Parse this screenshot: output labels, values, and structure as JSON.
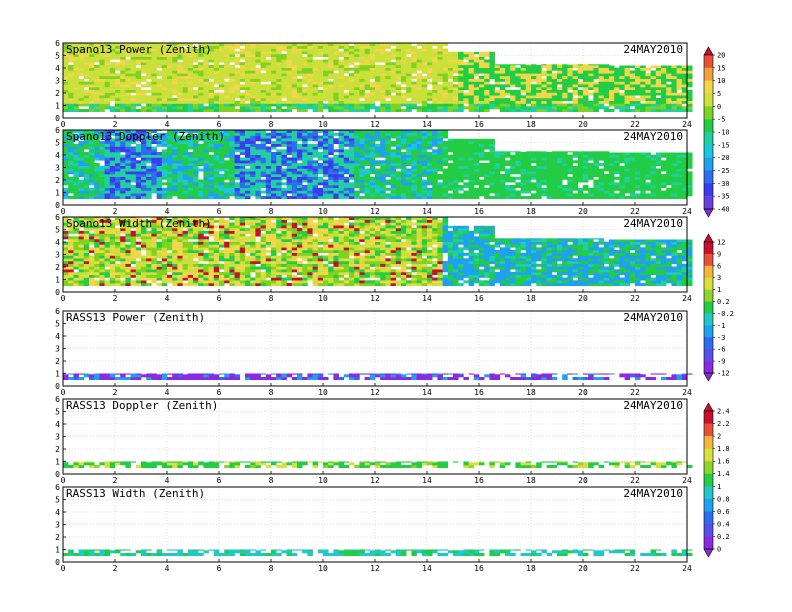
{
  "chart_data": [
    {
      "type": "heatmap",
      "title": "Spano13 Power (Zenith)",
      "date": "24MAY2010",
      "xlim": [
        0,
        24
      ],
      "x_ticks": [
        "0",
        "2",
        "4",
        "6",
        "8",
        "10",
        "12",
        "14",
        "16",
        "18",
        "20",
        "22",
        "24"
      ],
      "ylim": [
        0,
        6
      ],
      "y_ticks": [
        "0",
        "1",
        "2",
        "3",
        "4",
        "5",
        "6"
      ],
      "grid": true,
      "colorbar": {
        "labels": [
          "20",
          "15",
          "10",
          "5",
          "0",
          "-5",
          "-10",
          "-15",
          "-20",
          "-25",
          "-30",
          "-35",
          "-40"
        ],
        "min": -40,
        "max": 20,
        "extend": "both"
      },
      "series": [
        {
          "name": "Spano13 Power (Zenith)",
          "range_km": [
            0.5,
            6.0
          ],
          "values": [
            [
              0,
              14.6,
              6.0
            ],
            [
              14.6,
              16.4,
              5.3
            ],
            [
              16.4,
              20.8,
              4.3
            ],
            [
              20.8,
              24,
              4.2
            ]
          ]
        }
      ]
    },
    {
      "type": "heatmap",
      "title": "Spano13 Doppler (Zenith)",
      "date": "24MAY2010",
      "xlim": [
        0,
        24
      ],
      "x_ticks": [
        "0",
        "2",
        "4",
        "6",
        "8",
        "10",
        "12",
        "14",
        "16",
        "18",
        "20",
        "22",
        "24"
      ],
      "ylim": [
        0,
        6
      ],
      "y_ticks": [
        "0",
        "1",
        "2",
        "3",
        "4",
        "5",
        "6"
      ],
      "grid": true,
      "colorbar": null,
      "series": [
        {
          "name": "Spano13 Doppler (Zenith)",
          "range_km": [
            0.5,
            6.0
          ],
          "values": [
            [
              0,
              14.6,
              6.0
            ],
            [
              14.6,
              16.4,
              5.3
            ],
            [
              16.4,
              20.8,
              4.3
            ],
            [
              20.8,
              24,
              4.2
            ]
          ]
        }
      ]
    },
    {
      "type": "heatmap",
      "title": "Spano13 Width (Zenith)",
      "date": "24MAY2010",
      "xlim": [
        0,
        24
      ],
      "x_ticks": [
        "0",
        "2",
        "4",
        "6",
        "8",
        "10",
        "12",
        "14",
        "16",
        "18",
        "20",
        "22",
        "24"
      ],
      "ylim": [
        0,
        6
      ],
      "y_ticks": [
        "0",
        "1",
        "2",
        "3",
        "4",
        "5",
        "6"
      ],
      "grid": true,
      "colorbar": {
        "labels": [
          "12",
          "9",
          "6",
          "3",
          "1",
          "0.2",
          "-0.2",
          "-1",
          "-3",
          "-6",
          "-9",
          "-12"
        ],
        "min": -12,
        "max": 12,
        "extend": "both"
      },
      "series": [
        {
          "name": "Spano13 Width (Zenith)",
          "range_km": [
            0.5,
            6.0
          ],
          "values": [
            [
              0,
              14.6,
              6.0
            ],
            [
              14.6,
              16.4,
              5.3
            ],
            [
              16.4,
              20.8,
              4.3
            ],
            [
              20.8,
              24,
              4.2
            ]
          ]
        }
      ]
    },
    {
      "type": "heatmap",
      "title": "RASS13 Power (Zenith)",
      "date": "24MAY2010",
      "xlim": [
        0,
        24
      ],
      "x_ticks": [
        "0",
        "2",
        "4",
        "6",
        "8",
        "10",
        "12",
        "14",
        "16",
        "18",
        "20",
        "22",
        "24"
      ],
      "ylim": [
        0,
        6
      ],
      "y_ticks": [
        "0",
        "1",
        "2",
        "3",
        "4",
        "5",
        "6"
      ],
      "grid": true,
      "colorbar": null,
      "series": [
        {
          "name": "RASS13 Power (Zenith)",
          "range_km": [
            0.5,
            6.0
          ],
          "values": [
            [
              0,
              24,
              1.0
            ]
          ]
        }
      ]
    },
    {
      "type": "heatmap",
      "title": "RASS13 Doppler (Zenith)",
      "date": "24MAY2010",
      "xlim": [
        0,
        24
      ],
      "x_ticks": [
        "0",
        "2",
        "4",
        "6",
        "8",
        "10",
        "12",
        "14",
        "16",
        "18",
        "20",
        "22",
        "24"
      ],
      "ylim": [
        0,
        6
      ],
      "y_ticks": [
        "0",
        "1",
        "2",
        "3",
        "4",
        "5",
        "6"
      ],
      "grid": true,
      "colorbar": {
        "labels": [
          "2.4",
          "2.2",
          "2",
          "1.8",
          "1.6",
          "1.4",
          "1",
          "0.8",
          "0.6",
          "0.4",
          "0.2",
          "0"
        ],
        "min": 0,
        "max": 2.4,
        "extend": "both"
      },
      "series": [
        {
          "name": "RASS13 Doppler (Zenith)",
          "range_km": [
            0.5,
            6.0
          ],
          "values": [
            [
              0,
              24,
              1.0
            ]
          ]
        }
      ]
    },
    {
      "type": "heatmap",
      "title": "RASS13 Width (Zenith)",
      "date": "24MAY2010",
      "xlim": [
        0,
        24
      ],
      "x_ticks": [
        "0",
        "2",
        "4",
        "6",
        "8",
        "10",
        "12",
        "14",
        "16",
        "18",
        "20",
        "22",
        "24"
      ],
      "ylim": [
        0,
        6
      ],
      "y_ticks": [
        "0",
        "1",
        "2",
        "3",
        "4",
        "5",
        "6"
      ],
      "grid": true,
      "colorbar": null,
      "series": [
        {
          "name": "RASS13 Width (Zenith)",
          "range_km": [
            0.5,
            6.0
          ],
          "values": [
            [
              0,
              24,
              1.0
            ]
          ]
        }
      ]
    }
  ]
}
